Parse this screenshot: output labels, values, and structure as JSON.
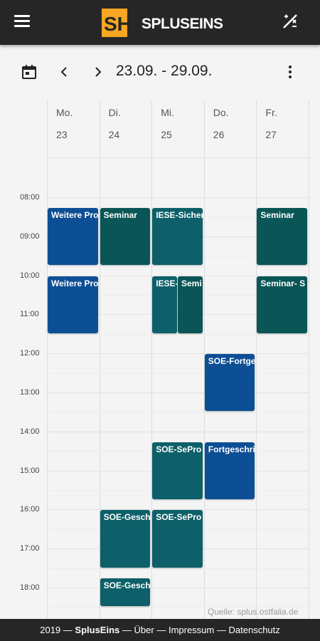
{
  "app": {
    "title": "SPLUSEINS",
    "logo_text": "SH",
    "accent": "#f5a623",
    "bar_color": "#262626"
  },
  "toolbar": {
    "date_range": "23.09. - 29.09."
  },
  "days": [
    {
      "name": "Mo.",
      "date": "23"
    },
    {
      "name": "Di.",
      "date": "24"
    },
    {
      "name": "Mi.",
      "date": "25"
    },
    {
      "name": "Do.",
      "date": "26"
    },
    {
      "name": "Fr.",
      "date": "27"
    }
  ],
  "times": [
    "08:00",
    "09:00",
    "10:00",
    "11:00",
    "12:00",
    "13:00",
    "14:00",
    "15:00",
    "16:00",
    "17:00",
    "18:00"
  ],
  "events": [
    {
      "day": 0,
      "start": "08:15",
      "end": "09:45",
      "title": "Weitere Pro",
      "color": "#0d4f95"
    },
    {
      "day": 0,
      "start": "10:00",
      "end": "11:30",
      "title": "Weitere Pro",
      "color": "#0d4f95"
    },
    {
      "day": 1,
      "start": "08:15",
      "end": "09:45",
      "title": "Seminar",
      "color": "#0a5555"
    },
    {
      "day": 1,
      "start": "16:00",
      "end": "17:30",
      "title": "SOE-Gesch",
      "color": "#0d6069"
    },
    {
      "day": 1,
      "start": "17:45",
      "end": "18:30",
      "title": "SOE-Gesch",
      "color": "#0d6069"
    },
    {
      "day": 2,
      "start": "08:15",
      "end": "09:45",
      "title": "IESE-Sicher",
      "color": "#0d6069"
    },
    {
      "day": 2,
      "start": "10:00",
      "end": "11:30",
      "title": "IESE-",
      "color": "#0d6069"
    },
    {
      "day": 2,
      "start": "10:00",
      "end": "11:30",
      "title": "Semi",
      "color": "#0a5555"
    },
    {
      "day": 2,
      "start": "14:15",
      "end": "15:45",
      "title": "SOE-SePro",
      "color": "#0d6069"
    },
    {
      "day": 2,
      "start": "16:00",
      "end": "17:30",
      "title": "SOE-SePro",
      "color": "#0d6069"
    },
    {
      "day": 3,
      "start": "12:00",
      "end": "13:30",
      "title": "SOE-Fortge",
      "color": "#0d4f95"
    },
    {
      "day": 3,
      "start": "14:15",
      "end": "15:45",
      "title": "Fortgeschri",
      "color": "#0d4f95"
    },
    {
      "day": 4,
      "start": "08:15",
      "end": "09:45",
      "title": "Seminar",
      "color": "#0a5555"
    },
    {
      "day": 4,
      "start": "10:00",
      "end": "11:30",
      "title": "Seminar- S",
      "color": "#0a5555"
    }
  ],
  "source": "Quelle: splus.ostfalia.de",
  "footer": {
    "year": "2019 —",
    "brand": "SplusEins",
    "sep1": "—",
    "about": "Über",
    "sep2": "—",
    "imprint": "Impressum",
    "sep3": "—",
    "privacy": "Datenschutz"
  }
}
